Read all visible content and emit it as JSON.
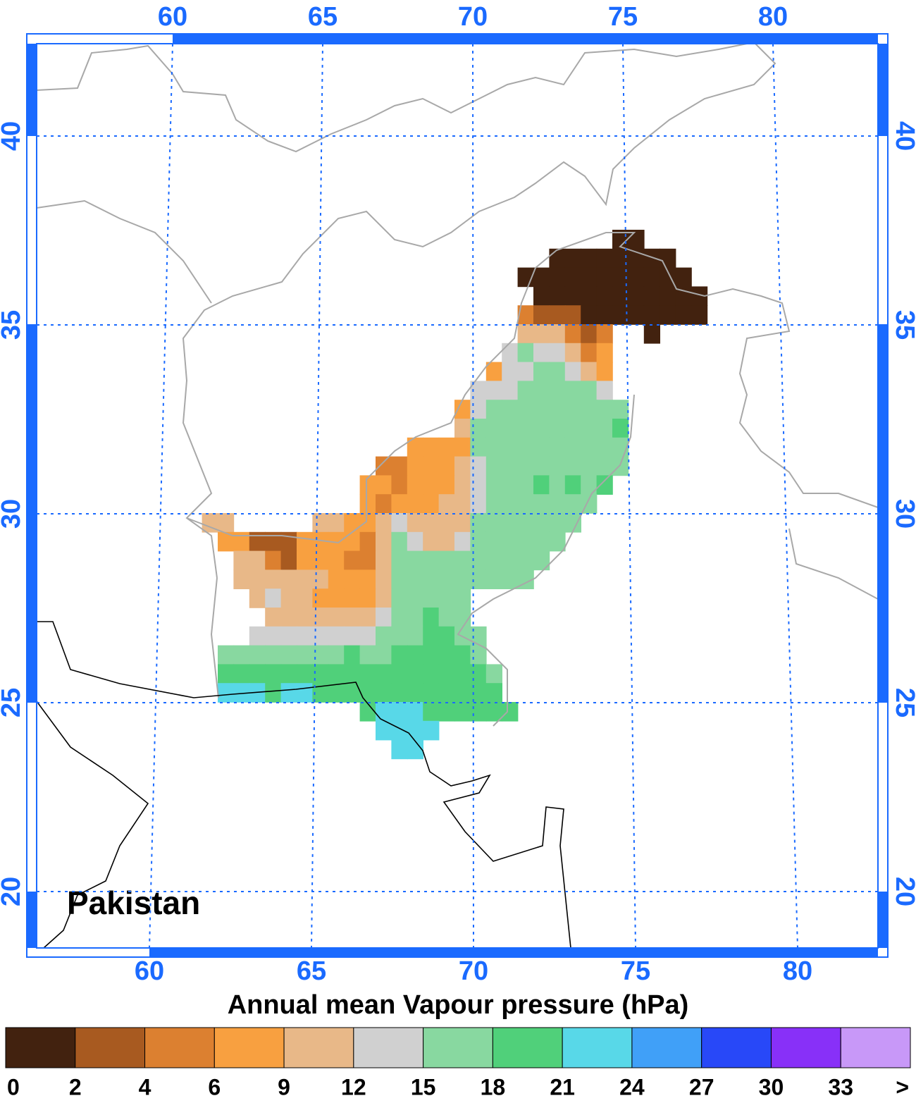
{
  "map": {
    "label": "Pakistan",
    "colorbar_title": "Annual mean Vapour pressure (hPa)",
    "top_ticks": [
      60,
      65,
      70,
      75,
      80
    ],
    "bottom_ticks": [
      60,
      65,
      70,
      75,
      80
    ],
    "left_ticks": [
      40,
      35,
      30,
      25,
      20
    ],
    "right_ticks": [
      40,
      35,
      30,
      25,
      20
    ],
    "levels": [
      0,
      2,
      4,
      6,
      9,
      12,
      15,
      18,
      21,
      24,
      27,
      30,
      33
    ],
    "over_label": ">",
    "colors": [
      "#42220f",
      "#a85a20",
      "#dc8030",
      "#f8a040",
      "#e8b888",
      "#d0d0d0",
      "#88d8a0",
      "#50d07a",
      "#58d8e8",
      "#40a0f8",
      "#2848f8",
      "#8830f8",
      "#c898f8"
    ],
    "rows": [
      {
        "lat": 37.5,
        "lon": 74.5,
        "values": [
          1,
          1
        ]
      },
      {
        "lat": 37.0,
        "lon": 72.5,
        "values": [
          1,
          1,
          1,
          1,
          1,
          1,
          1,
          1
        ]
      },
      {
        "lat": 36.5,
        "lon": 71.5,
        "values": [
          1,
          1,
          1,
          1,
          1,
          1,
          1,
          1,
          1,
          1,
          1
        ]
      },
      {
        "lat": 36.0,
        "lon": 72.0,
        "values": [
          1,
          1,
          1,
          1,
          1,
          1,
          1,
          1,
          1,
          1,
          1
        ]
      },
      {
        "lat": 35.5,
        "lon": 71.5,
        "values": [
          5,
          3,
          3,
          3,
          1,
          1,
          1,
          1,
          1,
          1,
          1,
          1
        ]
      },
      {
        "lat": 35.0,
        "lon": 71.5,
        "values": [
          10.5,
          10.5,
          10.5,
          5,
          3,
          5,
          null,
          null,
          1
        ]
      },
      {
        "lat": 34.5,
        "lon": 71.0,
        "values": [
          13.5,
          16.5,
          13.5,
          13.5,
          10.5,
          5,
          7.5
        ]
      },
      {
        "lat": 34.0,
        "lon": 70.5,
        "values": [
          7.5,
          13.5,
          13.5,
          16.5,
          16.5,
          13.5,
          10.5,
          7.5
        ]
      },
      {
        "lat": 33.5,
        "lon": 70.0,
        "values": [
          13.5,
          13.5,
          13.5,
          16.5,
          16.5,
          16.5,
          16.5,
          16.5,
          13.5
        ]
      },
      {
        "lat": 33.0,
        "lon": 69.5,
        "values": [
          7.5,
          13.5,
          16.5,
          16.5,
          16.5,
          16.5,
          16.5,
          16.5,
          16.5,
          16.5,
          16.5
        ]
      },
      {
        "lat": 32.5,
        "lon": 69.5,
        "values": [
          10.5,
          16.5,
          16.5,
          16.5,
          16.5,
          16.5,
          16.5,
          16.5,
          16.5,
          16.5,
          19.5
        ]
      },
      {
        "lat": 32.0,
        "lon": 68.0,
        "values": [
          7.5,
          7.5,
          7.5,
          7.5,
          16.5,
          16.5,
          16.5,
          16.5,
          16.5,
          16.5,
          16.5,
          16.5,
          16.5,
          16.5
        ]
      },
      {
        "lat": 31.5,
        "lon": 67.0,
        "values": [
          5,
          5,
          7.5,
          7.5,
          7.5,
          10.5,
          13.5,
          16.5,
          16.5,
          16.5,
          16.5,
          16.5,
          16.5,
          16.5,
          16.5,
          16.5
        ]
      },
      {
        "lat": 31.0,
        "lon": 66.5,
        "values": [
          7.5,
          7.5,
          5,
          7.5,
          7.5,
          7.5,
          10.5,
          13.5,
          16.5,
          16.5,
          16.5,
          19.5,
          16.5,
          19.5,
          16.5,
          19.5
        ]
      },
      {
        "lat": 30.5,
        "lon": 66.5,
        "values": [
          7.5,
          5,
          7.5,
          7.5,
          7.5,
          10.5,
          10.5,
          13.5,
          16.5,
          16.5,
          16.5,
          16.5,
          16.5,
          16.5,
          16.5
        ]
      },
      {
        "lat": 30.0,
        "lon": 61.5,
        "values": [
          10.5,
          10.5,
          null,
          null,
          null,
          null,
          null,
          10.5,
          10.5,
          7.5,
          7.5,
          10.5,
          13.5,
          10.5,
          10.5,
          10.5,
          10.5,
          16.5,
          16.5,
          16.5,
          16.5,
          16.5,
          16.5,
          16.5
        ]
      },
      {
        "lat": 29.5,
        "lon": 62.0,
        "values": [
          7.5,
          7.5,
          3,
          3,
          3,
          7.5,
          7.5,
          7.5,
          7.5,
          5,
          10.5,
          16.5,
          13.5,
          10.5,
          10.5,
          13.5,
          16.5,
          16.5,
          16.5,
          16.5,
          16.5,
          16.5
        ]
      },
      {
        "lat": 29.0,
        "lon": 62.5,
        "values": [
          10.5,
          10.5,
          5,
          3,
          7.5,
          7.5,
          7.5,
          5,
          5,
          10.5,
          16.5,
          16.5,
          16.5,
          16.5,
          16.5,
          16.5,
          16.5,
          16.5,
          16.5,
          16.5
        ]
      },
      {
        "lat": 28.5,
        "lon": 62.5,
        "values": [
          10.5,
          10.5,
          10.5,
          10.5,
          10.5,
          10.5,
          7.5,
          7.5,
          7.5,
          10.5,
          16.5,
          16.5,
          16.5,
          16.5,
          16.5,
          16.5,
          16.5,
          16.5,
          16.5
        ]
      },
      {
        "lat": 28.0,
        "lon": 63.0,
        "values": [
          10.5,
          13.5,
          10.5,
          10.5,
          7.5,
          7.5,
          7.5,
          7.5,
          10.5,
          16.5,
          16.5,
          16.5,
          16.5,
          16.5
        ]
      },
      {
        "lat": 27.5,
        "lon": 63.5,
        "values": [
          10.5,
          10.5,
          10.5,
          10.5,
          10.5,
          10.5,
          10.5,
          13.5,
          16.5,
          16.5,
          19.5,
          16.5,
          16.5
        ]
      },
      {
        "lat": 27.0,
        "lon": 63.0,
        "values": [
          13.5,
          13.5,
          13.5,
          13.5,
          13.5,
          13.5,
          13.5,
          13.5,
          16.5,
          16.5,
          16.5,
          19.5,
          19.5,
          16.5,
          16.5
        ]
      },
      {
        "lat": 26.5,
        "lon": 62.0,
        "values": [
          16.5,
          16.5,
          16.5,
          16.5,
          16.5,
          16.5,
          16.5,
          16.5,
          19.5,
          16.5,
          16.5,
          19.5,
          19.5,
          19.5,
          19.5,
          19.5,
          16.5
        ]
      },
      {
        "lat": 26.0,
        "lon": 62.0,
        "values": [
          19.5,
          19.5,
          19.5,
          19.5,
          19.5,
          19.5,
          19.5,
          19.5,
          19.5,
          19.5,
          19.5,
          19.5,
          19.5,
          19.5,
          19.5,
          19.5,
          19.5,
          16.5
        ]
      },
      {
        "lat": 25.5,
        "lon": 62.0,
        "values": [
          22.5,
          22.5,
          22.5,
          19.5,
          22.5,
          22.5,
          19.5,
          19.5,
          19.5,
          19.5,
          19.5,
          19.5,
          19.5,
          19.5,
          19.5,
          19.5,
          19.5,
          19.5
        ]
      },
      {
        "lat": 25.0,
        "lon": 66.5,
        "values": [
          19.5,
          22.5,
          22.5,
          22.5,
          19.5,
          19.5,
          19.5,
          19.5,
          19.5,
          19.5
        ]
      },
      {
        "lat": 24.5,
        "lon": 67.0,
        "values": [
          22.5,
          22.5,
          22.5,
          22.5
        ]
      },
      {
        "lat": 24.0,
        "lon": 67.5,
        "values": [
          22.5,
          22.5
        ]
      }
    ]
  }
}
